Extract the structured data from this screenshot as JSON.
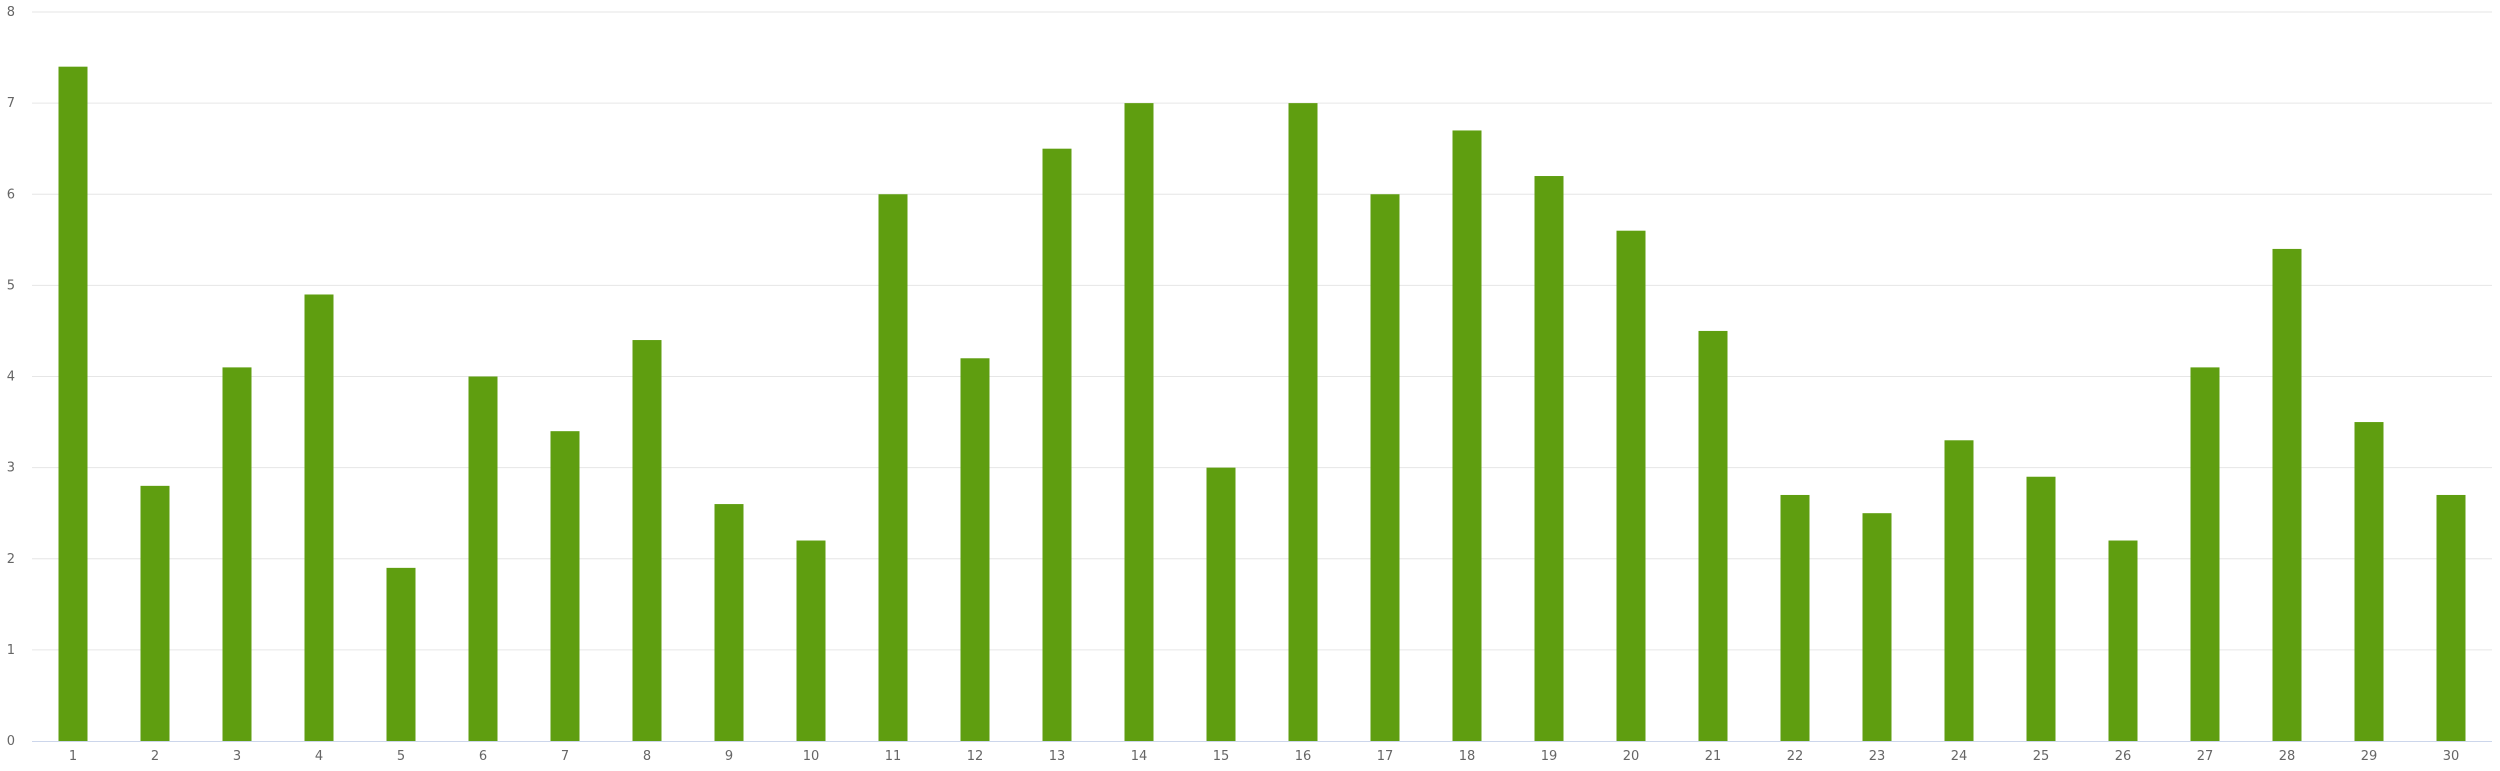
{
  "chart_data": {
    "type": "bar",
    "title": "",
    "xlabel": "",
    "ylabel": "",
    "categories": [
      "1",
      "2",
      "3",
      "4",
      "5",
      "6",
      "7",
      "8",
      "9",
      "10",
      "11",
      "12",
      "13",
      "14",
      "15",
      "16",
      "17",
      "18",
      "19",
      "20",
      "21",
      "22",
      "23",
      "24",
      "25",
      "26",
      "27",
      "28",
      "29",
      "30"
    ],
    "values": [
      7.4,
      2.8,
      4.1,
      4.9,
      1.9,
      4.0,
      3.4,
      4.4,
      2.6,
      2.2,
      6.0,
      4.2,
      6.5,
      7.0,
      3.0,
      7.0,
      6.0,
      6.7,
      6.2,
      5.6,
      4.5,
      2.7,
      2.5,
      3.3,
      2.9,
      2.2,
      4.1,
      5.4,
      3.5,
      2.7
    ],
    "ylim": [
      0,
      8
    ],
    "yticks": [
      0,
      1,
      2,
      3,
      4,
      5,
      6,
      7,
      8
    ],
    "grid": true,
    "legend": "none",
    "colors": {
      "bar": "#5f9e10",
      "grid": "#e6e6e6",
      "axis": "#ccd6eb",
      "tick_text": "#666666"
    }
  }
}
